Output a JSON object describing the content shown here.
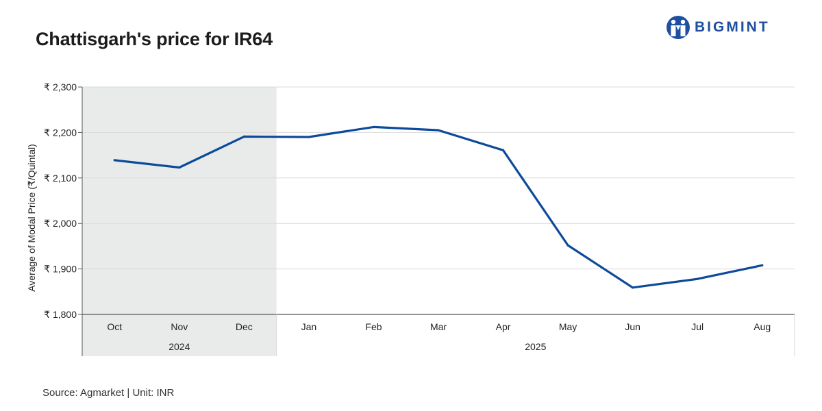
{
  "brand": {
    "name": "BIGMINT",
    "color": "#1e4fa0",
    "icon": "bigmint-people-icon"
  },
  "footer": {
    "source": "Source: Agmarket",
    "separator": " | ",
    "unit": "Unit: INR"
  },
  "chart_data": {
    "type": "line",
    "title": "Chattisgarh's price for IR64",
    "ylabel": "Average of Modal Price (₹/Quintal)",
    "xlabel": "",
    "ylim": [
      1800,
      2300
    ],
    "y_ticks": [
      1800,
      1900,
      2000,
      2100,
      2200,
      2300
    ],
    "y_tick_labels": [
      "₹ 1,800",
      "₹ 1,900",
      "₹ 2,000",
      "₹ 2,100",
      "₹ 2,200",
      "₹ 2,300"
    ],
    "grid": true,
    "categories": [
      "Oct",
      "Nov",
      "Dec",
      "Jan",
      "Feb",
      "Mar",
      "Apr",
      "May",
      "Jun",
      "Jul",
      "Aug"
    ],
    "years": [
      {
        "label": "2024",
        "from": 0,
        "to": 2
      },
      {
        "label": "2025",
        "from": 3,
        "to": 10
      }
    ],
    "highlight_year": "2024",
    "series": [
      {
        "values": [
          2139,
          2123,
          2191,
          2190,
          2212,
          2205,
          2161,
          1952,
          1859,
          1878,
          1908
        ],
        "color": "#0d4a9a"
      }
    ],
    "colors": {
      "highlight_band": "#e9ebea",
      "grid": "#d9d9d9",
      "axis": "#555555"
    }
  }
}
